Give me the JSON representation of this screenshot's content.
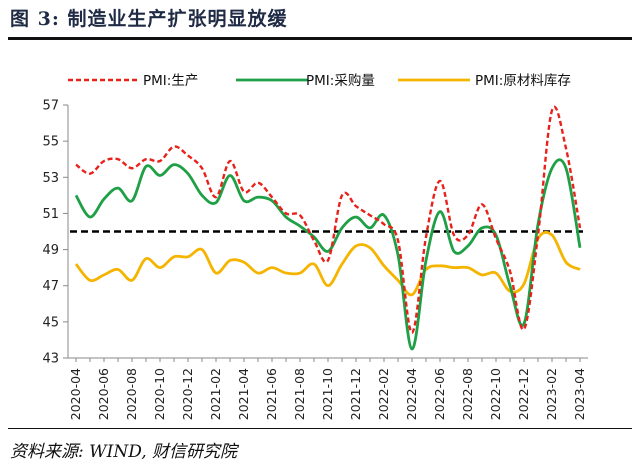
{
  "figure": {
    "title": "图 3:  制造业生产扩张明显放缓",
    "source": "资料来源: WIND, 财信研究院"
  },
  "chart_data": {
    "type": "line",
    "x": [
      "2020-04",
      "2020-05",
      "2020-06",
      "2020-07",
      "2020-08",
      "2020-09",
      "2020-10",
      "2020-11",
      "2020-12",
      "2021-01",
      "2021-02",
      "2021-03",
      "2021-04",
      "2021-05",
      "2021-06",
      "2021-07",
      "2021-08",
      "2021-09",
      "2021-10",
      "2021-11",
      "2021-12",
      "2022-01",
      "2022-02",
      "2022-03",
      "2022-04",
      "2022-05",
      "2022-06",
      "2022-07",
      "2022-08",
      "2022-09",
      "2022-10",
      "2022-11",
      "2022-12",
      "2023-01",
      "2023-02",
      "2023-03",
      "2023-04"
    ],
    "x_tick_labels": [
      "2020-04",
      "2020-06",
      "2020-08",
      "2020-10",
      "2020-12",
      "2021-02",
      "2021-04",
      "2021-06",
      "2021-08",
      "2021-10",
      "2021-12",
      "2022-02",
      "2022-04",
      "2022-06",
      "2022-08",
      "2022-10",
      "2022-12",
      "2023-02",
      "2023-04"
    ],
    "y_ticks": [
      43,
      45,
      47,
      49,
      51,
      53,
      55,
      57
    ],
    "ylim": [
      43,
      57
    ],
    "reference_line": 50,
    "legend_position": "top",
    "series": [
      {
        "name": "PMI:生产",
        "style": "dashed",
        "color": "#e8221b",
        "values": [
          53.7,
          53.2,
          53.9,
          54.0,
          53.5,
          54.0,
          53.9,
          54.7,
          54.2,
          53.5,
          51.9,
          53.9,
          52.2,
          52.7,
          51.9,
          51.0,
          50.9,
          49.5,
          48.4,
          52.0,
          51.4,
          50.9,
          50.4,
          49.5,
          44.4,
          49.7,
          52.8,
          49.8,
          49.8,
          51.5,
          49.6,
          47.8,
          44.6,
          49.8,
          56.7,
          54.6,
          50.2
        ]
      },
      {
        "name": "PMI:采购量",
        "style": "solid",
        "color": "#1fa046",
        "values": [
          52.0,
          50.8,
          51.8,
          52.4,
          51.7,
          53.6,
          53.1,
          53.7,
          53.2,
          52.0,
          51.6,
          53.1,
          51.7,
          51.9,
          51.7,
          50.8,
          50.3,
          49.7,
          48.9,
          50.2,
          50.8,
          50.2,
          50.9,
          48.7,
          43.5,
          48.4,
          51.1,
          48.9,
          49.2,
          50.2,
          49.8,
          47.0,
          44.9,
          50.4,
          53.5,
          53.5,
          49.1
        ]
      },
      {
        "name": "PMI:原材料库存",
        "style": "solid",
        "color": "#f5b400",
        "values": [
          48.2,
          47.3,
          47.6,
          47.9,
          47.3,
          48.5,
          48.0,
          48.6,
          48.6,
          49.0,
          47.7,
          48.4,
          48.3,
          47.7,
          48.0,
          47.7,
          47.7,
          48.2,
          47.0,
          48.2,
          49.2,
          49.1,
          48.1,
          47.3,
          46.5,
          47.9,
          48.1,
          48.0,
          48.0,
          47.6,
          47.7,
          46.7,
          47.1,
          49.6,
          49.8,
          48.3,
          47.9
        ]
      }
    ]
  }
}
